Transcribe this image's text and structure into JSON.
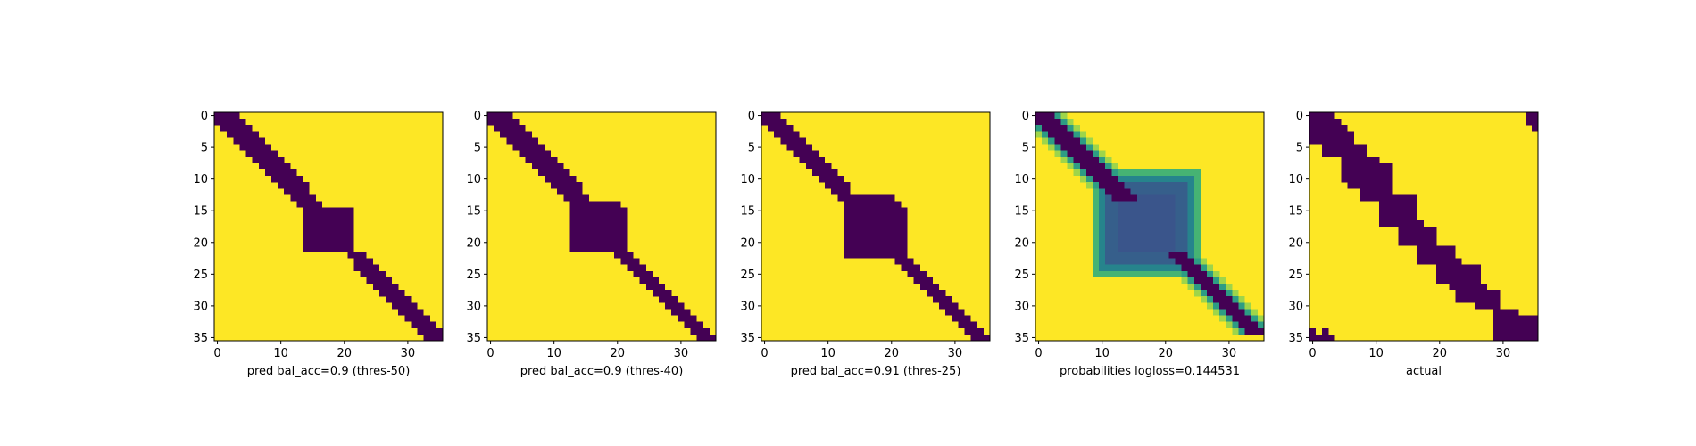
{
  "figure": {
    "background": "#ffffff"
  },
  "colors": {
    "low": "#440154",
    "high": "#fde725"
  },
  "chart_data": [
    {
      "type": "heatmap",
      "title": "",
      "xlabel": "pred bal_acc=0.9 (thres-50)",
      "ylabel": "",
      "grid": false,
      "size": 36,
      "xticks": [
        0,
        5,
        10,
        15,
        20,
        25,
        30,
        35
      ],
      "xticklabels": [
        "0",
        "10",
        "20",
        "30"
      ],
      "xtickvalues": [
        0,
        10,
        20,
        30
      ],
      "yticks": [
        0,
        5,
        10,
        15,
        20,
        25,
        30,
        35
      ],
      "yticklabels": [
        "0",
        "5",
        "10",
        "15",
        "20",
        "25",
        "30",
        "35"
      ],
      "band": {
        "start": [
          0,
          0,
          1,
          2,
          3,
          4,
          5,
          6,
          7,
          8,
          9,
          10,
          11,
          12,
          13,
          14,
          14,
          14,
          14,
          14,
          14,
          14,
          21,
          22,
          22,
          23,
          24,
          25,
          26,
          27,
          28,
          29,
          30,
          31,
          32,
          33
        ],
        "end": [
          3,
          4,
          5,
          6,
          7,
          8,
          9,
          10,
          11,
          12,
          13,
          14,
          14,
          15,
          16,
          21,
          21,
          21,
          21,
          21,
          21,
          21,
          23,
          24,
          25,
          26,
          27,
          28,
          29,
          30,
          31,
          32,
          33,
          34,
          35,
          35
        ]
      },
      "blob": null
    },
    {
      "type": "heatmap",
      "title": "",
      "xlabel": "pred bal_acc=0.9 (thres-40)",
      "ylabel": "",
      "grid": false,
      "size": 36,
      "xticks": [
        0,
        5,
        10,
        15,
        20,
        25,
        30,
        35
      ],
      "xticklabels": [
        "0",
        "10",
        "20",
        "30"
      ],
      "xtickvalues": [
        0,
        10,
        20,
        30
      ],
      "yticks": [
        0,
        5,
        10,
        15,
        20,
        25,
        30,
        35
      ],
      "yticklabels": [
        "0",
        "5",
        "10",
        "15",
        "20",
        "25",
        "30",
        "35"
      ],
      "band": {
        "start": [
          0,
          0,
          1,
          2,
          3,
          4,
          5,
          6,
          7,
          8,
          9,
          10,
          11,
          12,
          13,
          13,
          13,
          13,
          13,
          13,
          13,
          13,
          20,
          21,
          22,
          23,
          24,
          25,
          26,
          27,
          28,
          29,
          30,
          31,
          32,
          33
        ],
        "end": [
          3,
          4,
          5,
          6,
          7,
          8,
          9,
          10,
          11,
          12,
          13,
          14,
          14,
          15,
          20,
          21,
          21,
          21,
          21,
          21,
          21,
          21,
          22,
          23,
          24,
          25,
          26,
          27,
          28,
          29,
          30,
          31,
          32,
          33,
          34,
          35
        ]
      },
      "blob": null
    },
    {
      "type": "heatmap",
      "title": "",
      "xlabel": "pred bal_acc=0.91 (thres-25)",
      "ylabel": "",
      "grid": false,
      "size": 36,
      "xticks": [
        0,
        5,
        10,
        15,
        20,
        25,
        30,
        35
      ],
      "xticklabels": [
        "0",
        "10",
        "20",
        "30"
      ],
      "xtickvalues": [
        0,
        10,
        20,
        30
      ],
      "yticks": [
        0,
        5,
        10,
        15,
        20,
        25,
        30,
        35
      ],
      "yticklabels": [
        "0",
        "5",
        "10",
        "15",
        "20",
        "25",
        "30",
        "35"
      ],
      "band": {
        "start": [
          0,
          0,
          1,
          2,
          3,
          4,
          5,
          6,
          7,
          8,
          9,
          10,
          11,
          12,
          13,
          13,
          13,
          13,
          13,
          13,
          13,
          13,
          13,
          21,
          22,
          23,
          24,
          25,
          26,
          27,
          28,
          29,
          30,
          31,
          32,
          33
        ],
        "end": [
          2,
          3,
          4,
          5,
          6,
          7,
          8,
          9,
          10,
          11,
          12,
          13,
          13,
          20,
          21,
          22,
          22,
          22,
          22,
          22,
          22,
          22,
          22,
          23,
          24,
          25,
          26,
          27,
          28,
          29,
          30,
          31,
          32,
          33,
          34,
          35
        ]
      },
      "blob": null
    },
    {
      "type": "heatmap",
      "title": "",
      "xlabel": "probabilities logloss=0.144531",
      "ylabel": "",
      "grid": false,
      "size": 36,
      "xticks": [
        0,
        5,
        10,
        15,
        20,
        25,
        30,
        35
      ],
      "xticklabels": [
        "0",
        "10",
        "20",
        "30"
      ],
      "xtickvalues": [
        0,
        10,
        20,
        30
      ],
      "yticks": [
        0,
        5,
        10,
        15,
        20,
        25,
        30,
        35
      ],
      "yticklabels": [
        "0",
        "5",
        "10",
        "15",
        "20",
        "25",
        "30",
        "35"
      ],
      "band": {
        "start": [
          0,
          0,
          1,
          2,
          3,
          4,
          5,
          6,
          7,
          8,
          9,
          10,
          11,
          12,
          21,
          22,
          23,
          24,
          25,
          26,
          27,
          28,
          29,
          30,
          31,
          32,
          33
        ],
        "end": [
          2,
          3,
          4,
          5,
          6,
          7,
          8,
          9,
          10,
          11,
          12,
          13,
          14,
          15,
          23,
          24,
          25,
          26,
          27,
          28,
          29,
          30,
          31,
          32,
          33,
          34,
          35
        ],
        "rows": [
          0,
          1,
          2,
          3,
          4,
          5,
          6,
          7,
          8,
          9,
          10,
          11,
          12,
          13,
          22,
          23,
          24,
          25,
          26,
          27,
          28,
          29,
          30,
          31,
          32,
          33,
          34
        ]
      },
      "blob": {
        "center": [
          17.5,
          17.5
        ],
        "radius": 8.5,
        "soft": true
      }
    },
    {
      "type": "heatmap",
      "title": "",
      "xlabel": "actual",
      "ylabel": "",
      "grid": false,
      "size": 36,
      "xticks": [
        0,
        5,
        10,
        15,
        20,
        25,
        30,
        35
      ],
      "xticklabels": [
        "0",
        "10",
        "20",
        "30"
      ],
      "xtickvalues": [
        0,
        10,
        20,
        30
      ],
      "yticks": [
        0,
        5,
        10,
        15,
        20,
        25,
        30,
        35
      ],
      "yticklabels": [
        "0",
        "5",
        "10",
        "15",
        "20",
        "25",
        "30",
        "35"
      ],
      "band": {
        "start": [
          0,
          0,
          0,
          0,
          0,
          2,
          2,
          5,
          5,
          5,
          5,
          6,
          8,
          8,
          11,
          11,
          11,
          11,
          14,
          14,
          14,
          17,
          17,
          17,
          20,
          20,
          20,
          22,
          23,
          23,
          26,
          29,
          29,
          29,
          29,
          29
        ],
        "end": [
          3,
          4,
          5,
          6,
          6,
          8,
          8,
          10,
          12,
          12,
          12,
          12,
          12,
          16,
          16,
          16,
          16,
          17,
          19,
          19,
          19,
          22,
          22,
          23,
          26,
          26,
          26,
          27,
          29,
          29,
          29,
          32,
          35,
          35,
          35,
          35
        ]
      },
      "extra_cells": [
        [
          0,
          34
        ],
        [
          0,
          35
        ],
        [
          1,
          34
        ],
        [
          1,
          35
        ],
        [
          2,
          35
        ],
        [
          34,
          0
        ],
        [
          34,
          2
        ],
        [
          35,
          0
        ],
        [
          35,
          1
        ],
        [
          35,
          2
        ],
        [
          35,
          3
        ]
      ],
      "blob": null
    }
  ]
}
